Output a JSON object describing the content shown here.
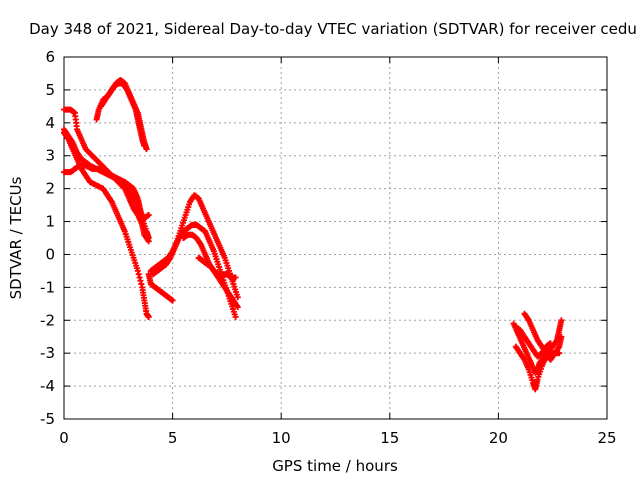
{
  "chart_data": {
    "type": "scatter",
    "title": "Day 348 of 2021, Sidereal Day-to-day VTEC variation (SDTVAR) for receiver cedu",
    "xlabel": "GPS time / hours",
    "ylabel": "SDTVAR / TECUs",
    "xlim": [
      0,
      25
    ],
    "ylim": [
      -5,
      6
    ],
    "xticks": [
      0,
      5,
      10,
      15,
      20,
      25
    ],
    "yticks": [
      -5,
      -4,
      -3,
      -2,
      -1,
      0,
      1,
      2,
      3,
      4,
      5,
      6
    ],
    "xtick_labels": [
      "0",
      "5",
      "10",
      "15",
      "20",
      "25"
    ],
    "ytick_labels": [
      "-5",
      "-4",
      "-3",
      "-2",
      "-1",
      "0",
      "1",
      "2",
      "3",
      "4",
      "5",
      "6"
    ],
    "grid": true,
    "legend": "none",
    "marker": "+",
    "color": "#ff0000",
    "series": [
      {
        "points": [
          [
            0.0,
            4.4
          ],
          [
            0.3,
            4.4
          ],
          [
            0.5,
            4.3
          ],
          [
            0.6,
            3.8
          ],
          [
            0.8,
            3.5
          ],
          [
            1.0,
            3.2
          ],
          [
            1.3,
            3.0
          ],
          [
            1.6,
            2.8
          ],
          [
            1.9,
            2.6
          ],
          [
            2.2,
            2.4
          ],
          [
            2.5,
            2.2
          ],
          [
            2.8,
            2.0
          ],
          [
            3.0,
            1.7
          ],
          [
            3.2,
            1.4
          ],
          [
            3.4,
            1.2
          ],
          [
            3.6,
            0.9
          ],
          [
            3.7,
            0.6
          ],
          [
            3.9,
            0.4
          ]
        ]
      },
      {
        "points": [
          [
            0.0,
            3.8
          ],
          [
            0.2,
            3.6
          ],
          [
            0.4,
            3.4
          ],
          [
            0.6,
            3.1
          ],
          [
            0.8,
            2.9
          ],
          [
            1.0,
            2.8
          ],
          [
            1.2,
            2.7
          ],
          [
            1.5,
            2.6
          ],
          [
            1.8,
            2.5
          ],
          [
            2.1,
            2.4
          ],
          [
            2.4,
            2.3
          ],
          [
            2.7,
            2.2
          ],
          [
            2.9,
            2.0
          ],
          [
            3.1,
            1.8
          ],
          [
            3.3,
            1.6
          ],
          [
            3.5,
            1.3
          ],
          [
            3.7,
            1.1
          ],
          [
            3.9,
            1.2
          ]
        ]
      },
      {
        "points": [
          [
            0.0,
            2.5
          ],
          [
            0.3,
            2.5
          ],
          [
            0.5,
            2.6
          ],
          [
            0.7,
            2.7
          ],
          [
            1.0,
            2.7
          ],
          [
            1.3,
            2.6
          ],
          [
            1.6,
            2.6
          ],
          [
            1.9,
            2.5
          ],
          [
            2.2,
            2.4
          ],
          [
            2.5,
            2.3
          ],
          [
            2.8,
            2.2
          ],
          [
            3.0,
            2.1
          ],
          [
            3.2,
            2.0
          ],
          [
            3.4,
            1.7
          ],
          [
            3.5,
            1.4
          ],
          [
            3.6,
            1.1
          ],
          [
            3.8,
            0.7
          ],
          [
            3.9,
            0.5
          ]
        ]
      },
      {
        "points": [
          [
            0.0,
            3.7
          ],
          [
            0.2,
            3.5
          ],
          [
            0.4,
            3.2
          ],
          [
            0.6,
            2.9
          ],
          [
            0.8,
            2.6
          ],
          [
            1.0,
            2.4
          ],
          [
            1.2,
            2.2
          ],
          [
            1.5,
            2.1
          ],
          [
            1.8,
            2.0
          ],
          [
            2.0,
            1.8
          ],
          [
            2.2,
            1.6
          ],
          [
            2.4,
            1.3
          ],
          [
            2.6,
            1.0
          ],
          [
            2.8,
            0.7
          ],
          [
            3.0,
            0.3
          ],
          [
            3.2,
            -0.1
          ],
          [
            3.4,
            -0.5
          ],
          [
            3.6,
            -1.0
          ],
          [
            3.7,
            -1.4
          ],
          [
            3.8,
            -1.8
          ],
          [
            3.9,
            -1.9
          ]
        ]
      },
      {
        "points": [
          [
            1.5,
            4.1
          ],
          [
            1.6,
            4.4
          ],
          [
            1.8,
            4.7
          ],
          [
            2.0,
            4.8
          ],
          [
            2.2,
            5.0
          ],
          [
            2.4,
            5.2
          ],
          [
            2.6,
            5.3
          ],
          [
            2.8,
            5.2
          ],
          [
            3.0,
            4.9
          ],
          [
            3.2,
            4.6
          ],
          [
            3.4,
            4.3
          ],
          [
            3.5,
            4.0
          ],
          [
            3.6,
            3.7
          ],
          [
            3.7,
            3.4
          ],
          [
            3.8,
            3.2
          ]
        ]
      },
      {
        "points": [
          [
            1.7,
            4.5
          ],
          [
            1.9,
            4.7
          ],
          [
            2.1,
            4.9
          ],
          [
            2.3,
            5.1
          ],
          [
            2.5,
            5.2
          ],
          [
            2.7,
            5.2
          ],
          [
            2.9,
            5.0
          ],
          [
            3.1,
            4.7
          ],
          [
            3.3,
            4.4
          ],
          [
            3.4,
            4.1
          ],
          [
            3.5,
            3.8
          ],
          [
            3.6,
            3.5
          ],
          [
            3.7,
            3.3
          ]
        ]
      },
      {
        "points": [
          [
            3.9,
            -0.6
          ],
          [
            4.0,
            -0.9
          ],
          [
            4.2,
            -1.0
          ],
          [
            4.4,
            -1.1
          ],
          [
            4.6,
            -1.2
          ],
          [
            4.8,
            -1.3
          ],
          [
            5.0,
            -1.4
          ]
        ]
      },
      {
        "points": [
          [
            4.0,
            -0.5
          ],
          [
            4.2,
            -0.4
          ],
          [
            4.4,
            -0.3
          ],
          [
            4.6,
            -0.2
          ],
          [
            4.8,
            -0.1
          ],
          [
            5.0,
            0.1
          ],
          [
            5.2,
            0.4
          ],
          [
            5.4,
            0.8
          ],
          [
            5.6,
            1.2
          ],
          [
            5.8,
            1.6
          ],
          [
            6.0,
            1.8
          ],
          [
            6.2,
            1.7
          ],
          [
            6.4,
            1.4
          ],
          [
            6.6,
            1.1
          ],
          [
            6.8,
            0.8
          ],
          [
            7.0,
            0.5
          ],
          [
            7.2,
            0.2
          ],
          [
            7.4,
            -0.1
          ],
          [
            7.6,
            -0.5
          ],
          [
            7.8,
            -0.9
          ],
          [
            8.0,
            -1.3
          ]
        ]
      },
      {
        "points": [
          [
            4.1,
            -0.6
          ],
          [
            4.3,
            -0.5
          ],
          [
            4.5,
            -0.4
          ],
          [
            4.7,
            -0.3
          ],
          [
            4.9,
            -0.1
          ],
          [
            5.1,
            0.2
          ],
          [
            5.3,
            0.5
          ],
          [
            5.5,
            0.7
          ],
          [
            5.7,
            0.8
          ],
          [
            5.9,
            0.9
          ],
          [
            6.1,
            0.9
          ],
          [
            6.3,
            0.8
          ],
          [
            6.5,
            0.7
          ],
          [
            6.7,
            0.4
          ],
          [
            6.9,
            0.1
          ],
          [
            7.1,
            -0.3
          ],
          [
            7.3,
            -0.7
          ],
          [
            7.5,
            -1.1
          ],
          [
            7.7,
            -1.5
          ],
          [
            7.9,
            -1.9
          ]
        ]
      },
      {
        "points": [
          [
            5.5,
            0.5
          ],
          [
            5.7,
            0.6
          ],
          [
            5.9,
            0.6
          ],
          [
            6.1,
            0.5
          ],
          [
            6.3,
            0.3
          ],
          [
            6.5,
            0.0
          ],
          [
            6.7,
            -0.3
          ],
          [
            6.9,
            -0.5
          ],
          [
            7.1,
            -0.6
          ],
          [
            7.3,
            -0.6
          ],
          [
            7.5,
            -0.6
          ],
          [
            7.7,
            -0.7
          ],
          [
            7.9,
            -0.7
          ]
        ]
      },
      {
        "points": [
          [
            6.2,
            -0.1
          ],
          [
            6.4,
            -0.2
          ],
          [
            6.6,
            -0.3
          ],
          [
            6.8,
            -0.4
          ],
          [
            7.0,
            -0.6
          ],
          [
            7.2,
            -0.8
          ],
          [
            7.4,
            -1.0
          ],
          [
            7.6,
            -1.2
          ],
          [
            7.8,
            -1.4
          ],
          [
            8.0,
            -1.6
          ]
        ]
      },
      {
        "points": [
          [
            20.7,
            -2.1
          ],
          [
            20.9,
            -2.4
          ],
          [
            21.1,
            -2.7
          ],
          [
            21.3,
            -3.0
          ],
          [
            21.5,
            -3.3
          ],
          [
            21.7,
            -3.6
          ],
          [
            21.8,
            -3.5
          ],
          [
            21.9,
            -3.3
          ],
          [
            22.1,
            -3.1
          ],
          [
            22.3,
            -2.9
          ],
          [
            22.5,
            -2.8
          ],
          [
            22.7,
            -2.6
          ],
          [
            22.8,
            -2.3
          ],
          [
            22.9,
            -2.0
          ]
        ]
      },
      {
        "points": [
          [
            20.8,
            -2.8
          ],
          [
            21.0,
            -3.0
          ],
          [
            21.2,
            -3.2
          ],
          [
            21.4,
            -3.5
          ],
          [
            21.6,
            -3.9
          ],
          [
            21.7,
            -4.1
          ],
          [
            21.8,
            -3.8
          ],
          [
            22.0,
            -3.4
          ],
          [
            22.2,
            -3.1
          ],
          [
            22.4,
            -3.0
          ],
          [
            22.6,
            -3.0
          ],
          [
            22.8,
            -3.0
          ]
        ]
      },
      {
        "points": [
          [
            21.2,
            -1.8
          ],
          [
            21.4,
            -2.0
          ],
          [
            21.6,
            -2.3
          ],
          [
            21.8,
            -2.6
          ],
          [
            22.0,
            -2.8
          ],
          [
            22.2,
            -3.0
          ],
          [
            22.4,
            -3.2
          ],
          [
            22.6,
            -3.0
          ],
          [
            22.8,
            -2.8
          ],
          [
            22.9,
            -2.5
          ]
        ]
      },
      {
        "points": [
          [
            20.8,
            -2.2
          ],
          [
            21.0,
            -2.3
          ],
          [
            21.2,
            -2.5
          ],
          [
            21.4,
            -2.7
          ],
          [
            21.6,
            -2.9
          ],
          [
            21.8,
            -3.1
          ],
          [
            22.0,
            -3.0
          ],
          [
            22.2,
            -2.8
          ],
          [
            22.4,
            -2.7
          ]
        ]
      }
    ]
  }
}
